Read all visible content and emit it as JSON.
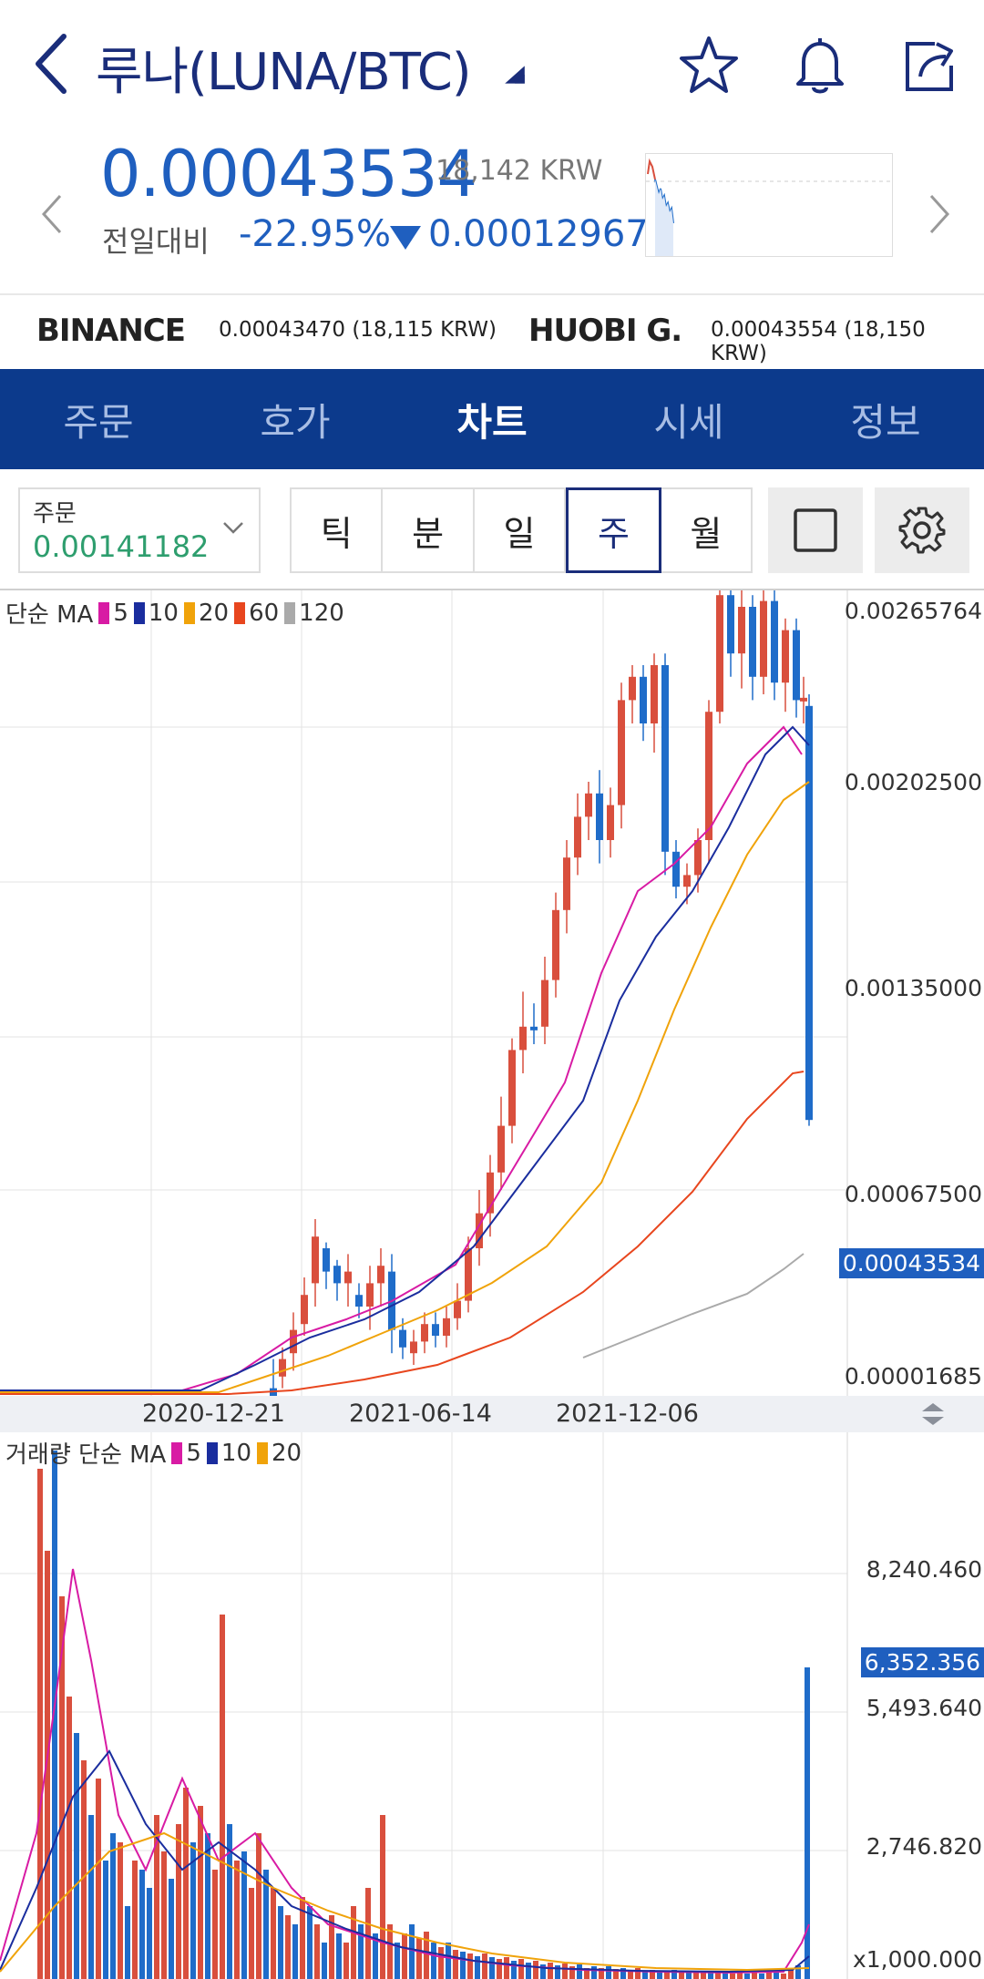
{
  "header": {
    "title": "루나(LUNA/BTC)",
    "icons": [
      "back-icon",
      "star-icon",
      "bell-icon",
      "share-icon"
    ]
  },
  "price": {
    "current": "0.00043534",
    "krw": "18,142 KRW",
    "change_label": "전일대비",
    "change_pct": "-22.95%",
    "change_val": "0.00012967",
    "down_color": "#1f5fbf"
  },
  "exchanges": [
    {
      "name": "BINANCE",
      "value": "0.00043470 (18,115 KRW)"
    },
    {
      "name": "HUOBI G.",
      "value": "0.00043554 (18,150 KRW)"
    }
  ],
  "tabs": [
    {
      "label": "주문",
      "active": false
    },
    {
      "label": "호가",
      "active": false
    },
    {
      "label": "차트",
      "active": true
    },
    {
      "label": "시세",
      "active": false
    },
    {
      "label": "정보",
      "active": false
    }
  ],
  "controls": {
    "order_label": "주문",
    "order_value": "0.00141182",
    "periods": [
      "틱",
      "분",
      "일",
      "주",
      "월"
    ],
    "active_period": "주"
  },
  "price_chart": {
    "legend_prefix": "단순 MA",
    "ma": [
      {
        "period": "5",
        "color": "#d81ba4"
      },
      {
        "period": "10",
        "color": "#1a2d9e"
      },
      {
        "period": "20",
        "color": "#f0a30a"
      },
      {
        "period": "60",
        "color": "#e8461e"
      },
      {
        "period": "120",
        "color": "#aaaaaa"
      }
    ],
    "y_labels": [
      "0.00265764",
      "0.00202500",
      "0.00135000",
      "0.00067500",
      "0.00001685"
    ],
    "current_label": "0.00043534",
    "x_labels": [
      "2020-12-21",
      "2021-06-14",
      "2021-12-06"
    ]
  },
  "volume_chart": {
    "legend_prefix": "거래량 단순 MA",
    "ma": [
      {
        "period": "5",
        "color": "#d81ba4"
      },
      {
        "period": "10",
        "color": "#1a2d9e"
      },
      {
        "period": "20",
        "color": "#f0a30a"
      }
    ],
    "y_labels": [
      "8,240.460",
      "5,493.640",
      "2,746.820"
    ],
    "current_label": "6,352.356",
    "bottom_label": "x1,000.000"
  },
  "colors": {
    "up": "#d94f3d",
    "down": "#1f6cc9",
    "brand": "#0c3a8c",
    "title": "#1a2d7a"
  }
}
